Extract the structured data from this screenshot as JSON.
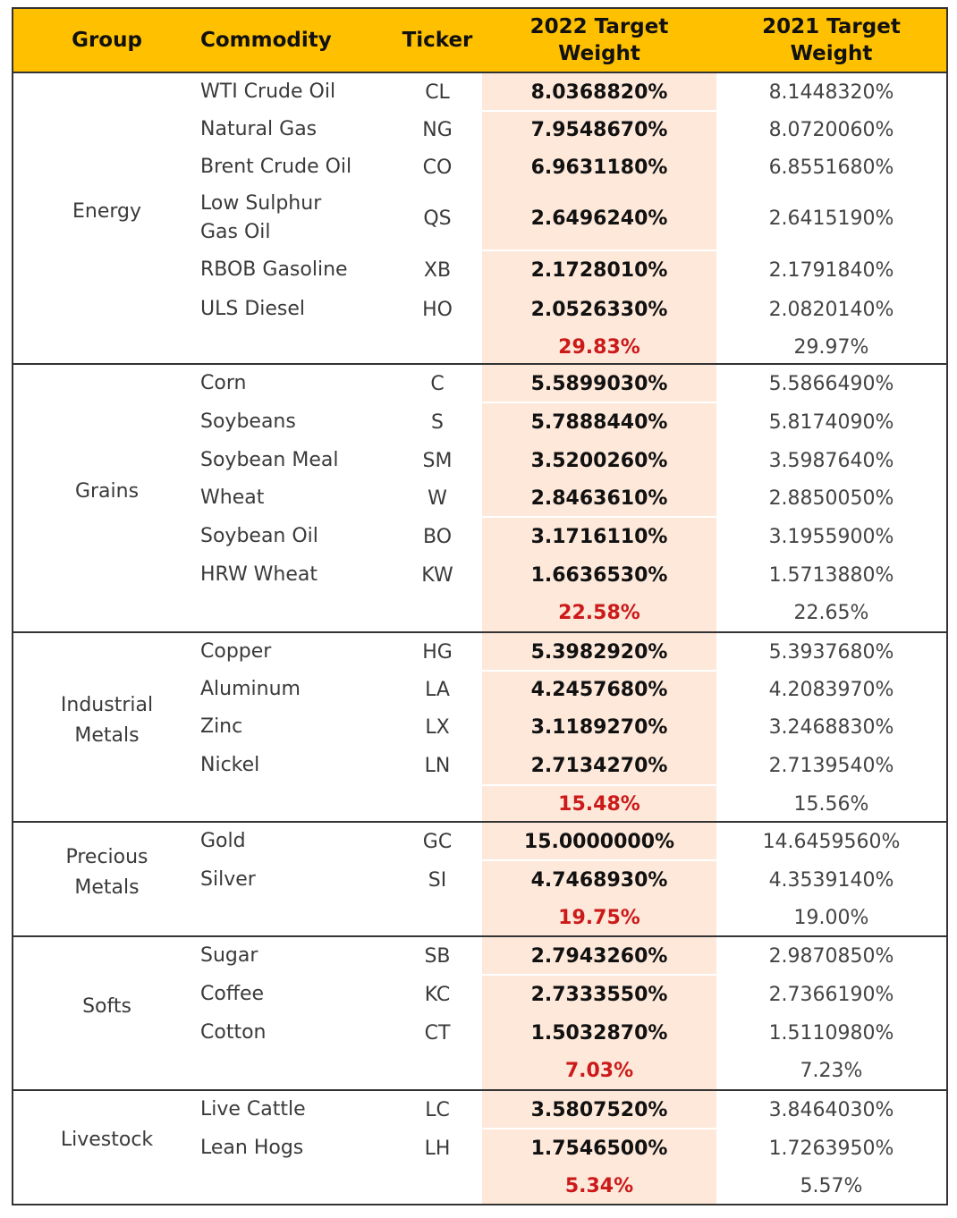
{
  "header": {
    "group": "Group",
    "commodity": "Commodity",
    "ticker": "Ticker",
    "w2022_line1": "2022 Target",
    "w2022_line2": "Weight",
    "w2021_line1": "2021 Target",
    "w2021_line2": "Weight"
  },
  "colors": {
    "header_bg": "#ffc000",
    "highlight_col_bg": "#fde8da",
    "total_2022_text": "#cc1a1a",
    "border": "#333333"
  },
  "groups": [
    {
      "name_line1": "Energy",
      "name_line2": "",
      "rows": [
        {
          "commodity": "WTI Crude Oil",
          "commodity2": "",
          "ticker": "CL",
          "w2022": "8.0368820%",
          "w2021": "8.1448320%"
        },
        {
          "commodity": "Natural Gas",
          "commodity2": "",
          "ticker": "NG",
          "w2022": "7.9548670%",
          "w2021": "8.0720060%"
        },
        {
          "commodity": "Brent Crude Oil",
          "commodity2": "",
          "ticker": "CO",
          "w2022": "6.9631180%",
          "w2021": "6.8551680%"
        },
        {
          "commodity": "Low Sulphur",
          "commodity2": "Gas Oil",
          "ticker": "QS",
          "w2022": "2.6496240%",
          "w2021": "2.6415190%"
        },
        {
          "commodity": "RBOB Gasoline",
          "commodity2": "",
          "ticker": "XB",
          "w2022": "2.1728010%",
          "w2021": "2.1791840%"
        },
        {
          "commodity": "ULS Diesel",
          "commodity2": "",
          "ticker": "HO",
          "w2022": "2.0526330%",
          "w2021": "2.0820140%"
        }
      ],
      "total2022": "29.83%",
      "total2021": "29.97%"
    },
    {
      "name_line1": "Grains",
      "name_line2": "",
      "rows": [
        {
          "commodity": "Corn",
          "commodity2": "",
          "ticker": "C",
          "w2022": "5.5899030%",
          "w2021": "5.5866490%"
        },
        {
          "commodity": "Soybeans",
          "commodity2": "",
          "ticker": "S",
          "w2022": "5.7888440%",
          "w2021": "5.8174090%"
        },
        {
          "commodity": "Soybean Meal",
          "commodity2": "",
          "ticker": "SM",
          "w2022": "3.5200260%",
          "w2021": "3.5987640%"
        },
        {
          "commodity": "Wheat",
          "commodity2": "",
          "ticker": "W",
          "w2022": "2.8463610%",
          "w2021": "2.8850050%"
        },
        {
          "commodity": "Soybean Oil",
          "commodity2": "",
          "ticker": "BO",
          "w2022": "3.1716110%",
          "w2021": "3.1955900%"
        },
        {
          "commodity": "HRW Wheat",
          "commodity2": "",
          "ticker": "KW",
          "w2022": "1.6636530%",
          "w2021": "1.5713880%"
        }
      ],
      "total2022": "22.58%",
      "total2021": "22.65%"
    },
    {
      "name_line1": "Industrial",
      "name_line2": "Metals",
      "rows": [
        {
          "commodity": "Copper",
          "commodity2": "",
          "ticker": "HG",
          "w2022": "5.3982920%",
          "w2021": "5.3937680%"
        },
        {
          "commodity": "Aluminum",
          "commodity2": "",
          "ticker": "LA",
          "w2022": "4.2457680%",
          "w2021": "4.2083970%"
        },
        {
          "commodity": "Zinc",
          "commodity2": "",
          "ticker": "LX",
          "w2022": "3.1189270%",
          "w2021": "3.2468830%"
        },
        {
          "commodity": "Nickel",
          "commodity2": "",
          "ticker": "LN",
          "w2022": "2.7134270%",
          "w2021": "2.7139540%"
        }
      ],
      "total2022": "15.48%",
      "total2021": "15.56%"
    },
    {
      "name_line1": "Precious",
      "name_line2": "Metals",
      "rows": [
        {
          "commodity": "Gold",
          "commodity2": "",
          "ticker": "GC",
          "w2022": "15.0000000%",
          "w2021": "14.6459560%"
        },
        {
          "commodity": "Silver",
          "commodity2": "",
          "ticker": "SI",
          "w2022": "4.7468930%",
          "w2021": "4.3539140%"
        }
      ],
      "total2022": "19.75%",
      "total2021": "19.00%"
    },
    {
      "name_line1": "Softs",
      "name_line2": "",
      "rows": [
        {
          "commodity": "Sugar",
          "commodity2": "",
          "ticker": "SB",
          "w2022": "2.7943260%",
          "w2021": "2.9870850%"
        },
        {
          "commodity": "Coffee",
          "commodity2": "",
          "ticker": "KC",
          "w2022": "2.7333550%",
          "w2021": "2.7366190%"
        },
        {
          "commodity": "Cotton",
          "commodity2": "",
          "ticker": "CT",
          "w2022": "1.5032870%",
          "w2021": "1.5110980%"
        }
      ],
      "total2022": "7.03%",
      "total2021": "7.23%"
    },
    {
      "name_line1": "Livestock",
      "name_line2": "",
      "rows": [
        {
          "commodity": "Live Cattle",
          "commodity2": "",
          "ticker": "LC",
          "w2022": "3.5807520%",
          "w2021": "3.8464030%"
        },
        {
          "commodity": "Lean Hogs",
          "commodity2": "",
          "ticker": "LH",
          "w2022": "1.7546500%",
          "w2021": "1.7263950%"
        }
      ],
      "total2022": "5.34%",
      "total2021": "5.57%"
    }
  ]
}
